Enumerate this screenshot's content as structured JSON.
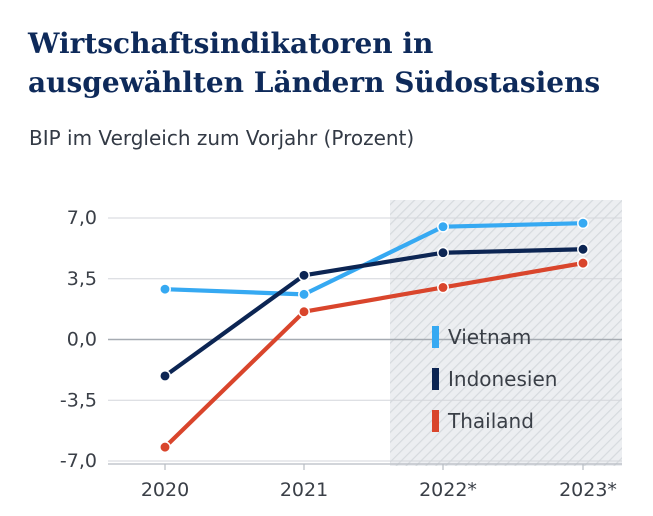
{
  "header": {
    "title_line1": "Wirtschaftsindikatoren in",
    "title_line2": "ausgewählten Ländern Südostasiens",
    "subtitle": "BIP im Vergleich zum Vorjahr (Prozent)"
  },
  "colors": {
    "title": "#0e2a5a",
    "gridline": "#d3d6db",
    "zero_line": "#a6abb2",
    "forecast_band": "#e4e7eb"
  },
  "chart_data": {
    "type": "line",
    "title": "Wirtschaftsindikatoren in ausgewählten Ländern Südostasiens",
    "subtitle": "BIP im Vergleich zum Vorjahr (Prozent)",
    "categories": [
      "2020",
      "2021",
      "2022*",
      "2023*"
    ],
    "forecast_categories": [
      "2022*",
      "2023*"
    ],
    "ylim": [
      -7.0,
      7.0
    ],
    "yticks": [
      7.0,
      3.5,
      0.0,
      -3.5,
      -7.0
    ],
    "ytick_labels": [
      "7,0",
      "3,5",
      "0,0",
      "-3,5",
      "-7,0"
    ],
    "legend_position": "center-right",
    "series": [
      {
        "name": "Vietnam",
        "color": "#36a9f2",
        "values": [
          2.9,
          2.6,
          6.5,
          6.7
        ]
      },
      {
        "name": "Indonesien",
        "color": "#0c2553",
        "values": [
          -2.1,
          3.7,
          5.0,
          5.2
        ]
      },
      {
        "name": "Thailand",
        "color": "#d9452c",
        "values": [
          -6.2,
          1.6,
          3.0,
          4.4
        ]
      }
    ]
  }
}
